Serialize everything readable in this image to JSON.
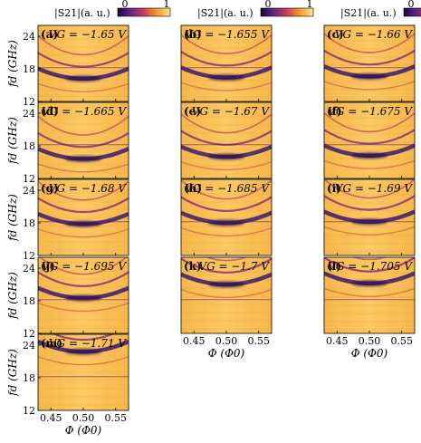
{
  "chart_data": {
    "type": "heatmap",
    "colorbar": {
      "title": "|S21|(a. u.)",
      "min_label": "0",
      "max_label": "1",
      "colormap": [
        "#1a0533",
        "#4b1b7a",
        "#8a2a7a",
        "#c8405a",
        "#ef7a30",
        "#fbb540",
        "#fde4a0"
      ]
    },
    "x_axis": {
      "label": "Φ (Φ0)",
      "ticks": [
        "0.45",
        "0.50",
        "0.55"
      ],
      "range": [
        0.43,
        0.57
      ]
    },
    "y_axis": {
      "label": "fd (GHz)",
      "ticks": [
        "12",
        "18",
        "24"
      ],
      "range": [
        12,
        26
      ]
    },
    "panels": [
      {
        "label": "(a)",
        "vg": "VG = −1.65 V",
        "vertex": 16.2
      },
      {
        "label": "(b)",
        "vg": "VG = −1.655 V",
        "vertex": 16.4
      },
      {
        "label": "(c)",
        "vg": "VG = −1.66 V",
        "vertex": 16.6
      },
      {
        "label": "(d)",
        "vg": "VG = −1.665 V",
        "vertex": 15.6
      },
      {
        "label": "(e)",
        "vg": "VG = −1.67 V",
        "vertex": 16.0
      },
      {
        "label": "(f)",
        "vg": "VG = −1.675 V",
        "vertex": 16.2
      },
      {
        "label": "(g)",
        "vg": "VG = −1.68 V",
        "vertex": 17.8
      },
      {
        "label": "(h)",
        "vg": "VG = −1.685 V",
        "vertex": 18.0
      },
      {
        "label": "(i)",
        "vg": "VG = −1.69 V",
        "vertex": 18.2
      },
      {
        "label": "(j)",
        "vg": "VG = −1.695 V",
        "vertex": 18.5
      },
      {
        "label": "(k)",
        "vg": "VG = −1.7 V",
        "vertex": 21.0
      },
      {
        "label": "(l)",
        "vg": "VG = −1.705 V",
        "vertex": 21.2
      },
      {
        "label": "(m)",
        "vg": "VG = −1.71 V",
        "vertex": 22.8
      }
    ]
  }
}
